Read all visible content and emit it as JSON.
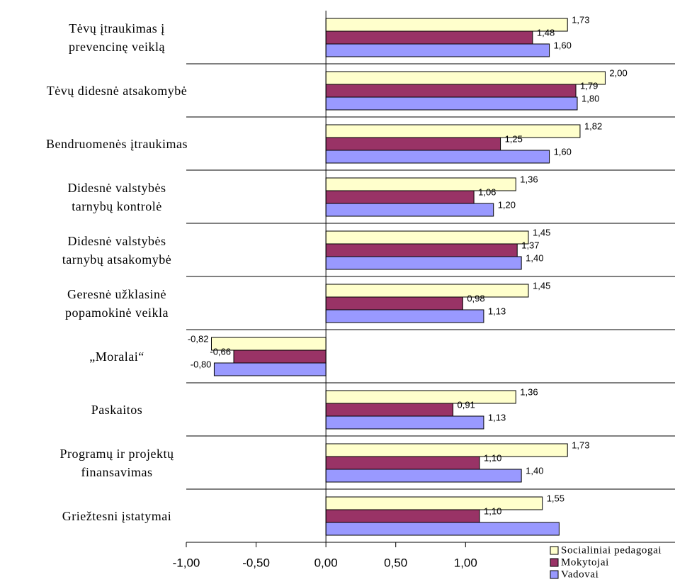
{
  "chart_data": {
    "type": "hbar",
    "categories": [
      "Tėvų įtraukimas į\nprevencinę veiklą",
      "Tėvų didesnė atsakomybė",
      "Bendruomenės įtraukimas",
      "Didesnė valstybės\ntarnybų kontrolė",
      "Didesnė valstybės\ntarnybų atsakomybė",
      "Geresnė užklasinė\npopamokinė veikla",
      "„Moralai“",
      "Paskaitos",
      "Programų ir projektų\nfinansavimas",
      "Griežtesni įstatymai"
    ],
    "series": [
      {
        "name": "Socialiniai pedagogai",
        "color": "#ffffcc",
        "values": [
          1.73,
          2.0,
          1.82,
          1.36,
          1.45,
          1.45,
          -0.82,
          1.36,
          1.73,
          1.55
        ],
        "value_labels": [
          "1,73",
          "2,00",
          "1,82",
          "1,36",
          "1,45",
          "1,45",
          "-0,82",
          "1,36",
          "1,73",
          "1,55"
        ]
      },
      {
        "name": "Mokytojai",
        "color": "#993366",
        "values": [
          1.48,
          1.79,
          1.25,
          1.06,
          1.37,
          0.98,
          -0.66,
          0.91,
          1.1,
          1.1
        ],
        "value_labels": [
          "1,48",
          "1,79",
          "1,25",
          "1,06",
          "1,37",
          "0,98",
          "-0,66",
          "0,91",
          "1,10",
          "1,10"
        ]
      },
      {
        "name": "Vadovai",
        "color": "#9999ff",
        "values": [
          1.6,
          1.8,
          1.6,
          1.2,
          1.4,
          1.13,
          -0.8,
          1.13,
          1.4,
          1.67
        ],
        "value_labels": [
          "1,60",
          "1,80",
          "1,60",
          "1,20",
          "1,40",
          "1,13",
          "-0,80",
          "1,13",
          "1,40",
          null
        ]
      }
    ],
    "xlim": [
      -1,
      2.5
    ],
    "xticks": [
      {
        "value": -1,
        "label": "-1,00"
      },
      {
        "value": -0.5,
        "label": "-0,50"
      },
      {
        "value": 0,
        "label": "0,00"
      },
      {
        "value": 0.5,
        "label": "0,50"
      },
      {
        "value": 1,
        "label": "1,00"
      }
    ],
    "legend": "bottom-right"
  }
}
